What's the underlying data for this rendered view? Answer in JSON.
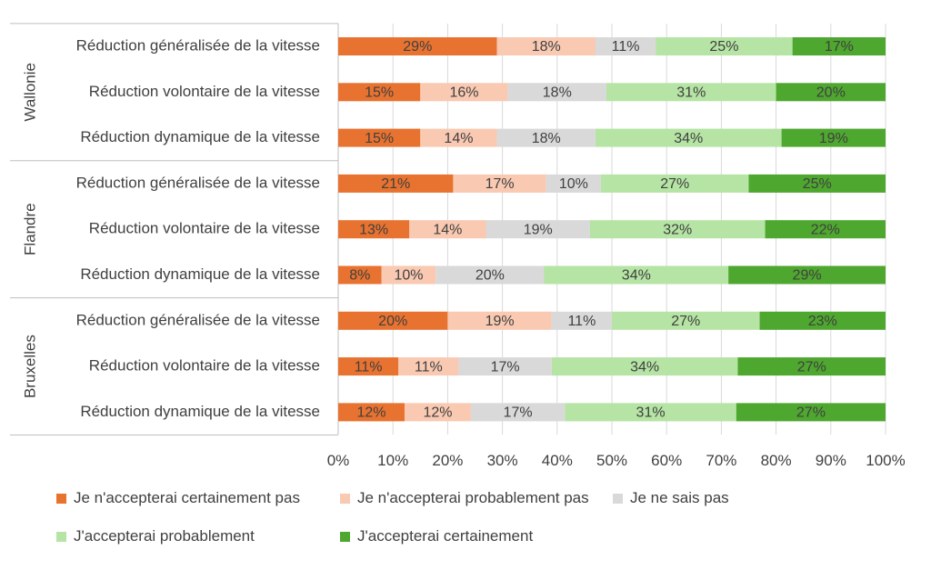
{
  "chart_data": {
    "type": "bar",
    "orientation": "horizontal",
    "stacked": "percent",
    "title": "",
    "xlabel": "",
    "ylabel": "",
    "xlim": [
      0,
      100
    ],
    "x_ticks": [
      "0%",
      "10%",
      "20%",
      "30%",
      "40%",
      "50%",
      "60%",
      "70%",
      "80%",
      "90%",
      "100%"
    ],
    "grid": true,
    "legend_position": "bottom",
    "groups": [
      {
        "name": "Wallonie",
        "rows": [
          {
            "label": "Réduction généralisée de la vitesse",
            "values": [
              29,
              18,
              11,
              25,
              17
            ],
            "labels": [
              "29%",
              "18%",
              "11%",
              "25%",
              "17%"
            ]
          },
          {
            "label": "Réduction volontaire de la vitesse",
            "values": [
              15,
              16,
              18,
              31,
              20
            ],
            "labels": [
              "15%",
              "16%",
              "18%",
              "31%",
              "20%"
            ]
          },
          {
            "label": "Réduction dynamique de la vitesse",
            "values": [
              15,
              14,
              18,
              34,
              19
            ],
            "labels": [
              "15%",
              "14%",
              "18%",
              "34%",
              "19%"
            ]
          }
        ]
      },
      {
        "name": "Flandre",
        "rows": [
          {
            "label": "Réduction généralisée de la vitesse",
            "values": [
              21,
              17,
              10,
              27,
              25
            ],
            "labels": [
              "21%",
              "17%",
              "10%",
              "27%",
              "25%"
            ]
          },
          {
            "label": "Réduction volontaire de la vitesse",
            "values": [
              13,
              14,
              19,
              32,
              22
            ],
            "labels": [
              "13%",
              "14%",
              "19%",
              "32%",
              "22%"
            ]
          },
          {
            "label": "Réduction dynamique de la vitesse",
            "values": [
              8,
              10,
              20,
              34,
              29
            ],
            "labels": [
              "8%",
              "10%",
              "20%",
              "34%",
              "29%"
            ]
          }
        ]
      },
      {
        "name": "Bruxelles",
        "rows": [
          {
            "label": "Réduction généralisée de la vitesse",
            "values": [
              20,
              19,
              11,
              27,
              23
            ],
            "labels": [
              "20%",
              "19%",
              "11%",
              "27%",
              "23%"
            ]
          },
          {
            "label": "Réduction volontaire de la vitesse",
            "values": [
              11,
              11,
              17,
              34,
              27
            ],
            "labels": [
              "11%",
              "11%",
              "17%",
              "34%",
              "27%"
            ]
          },
          {
            "label": "Réduction dynamique de la vitesse",
            "values": [
              12,
              12,
              17,
              31,
              27
            ],
            "labels": [
              "12%",
              "12%",
              "17%",
              "31%",
              "27%"
            ]
          }
        ]
      }
    ],
    "series": [
      {
        "name": "Je n'accepterai certainement pas",
        "color": "#E8722F"
      },
      {
        "name": "Je n'accepterai probablement pas",
        "color": "#F9C9B2"
      },
      {
        "name": "Je ne sais pas",
        "color": "#D9D9D9"
      },
      {
        "name": "J'accepterai probablement",
        "color": "#B5E4A4"
      },
      {
        "name": "J'accepterai certainement",
        "color": "#4EA72E"
      }
    ]
  }
}
